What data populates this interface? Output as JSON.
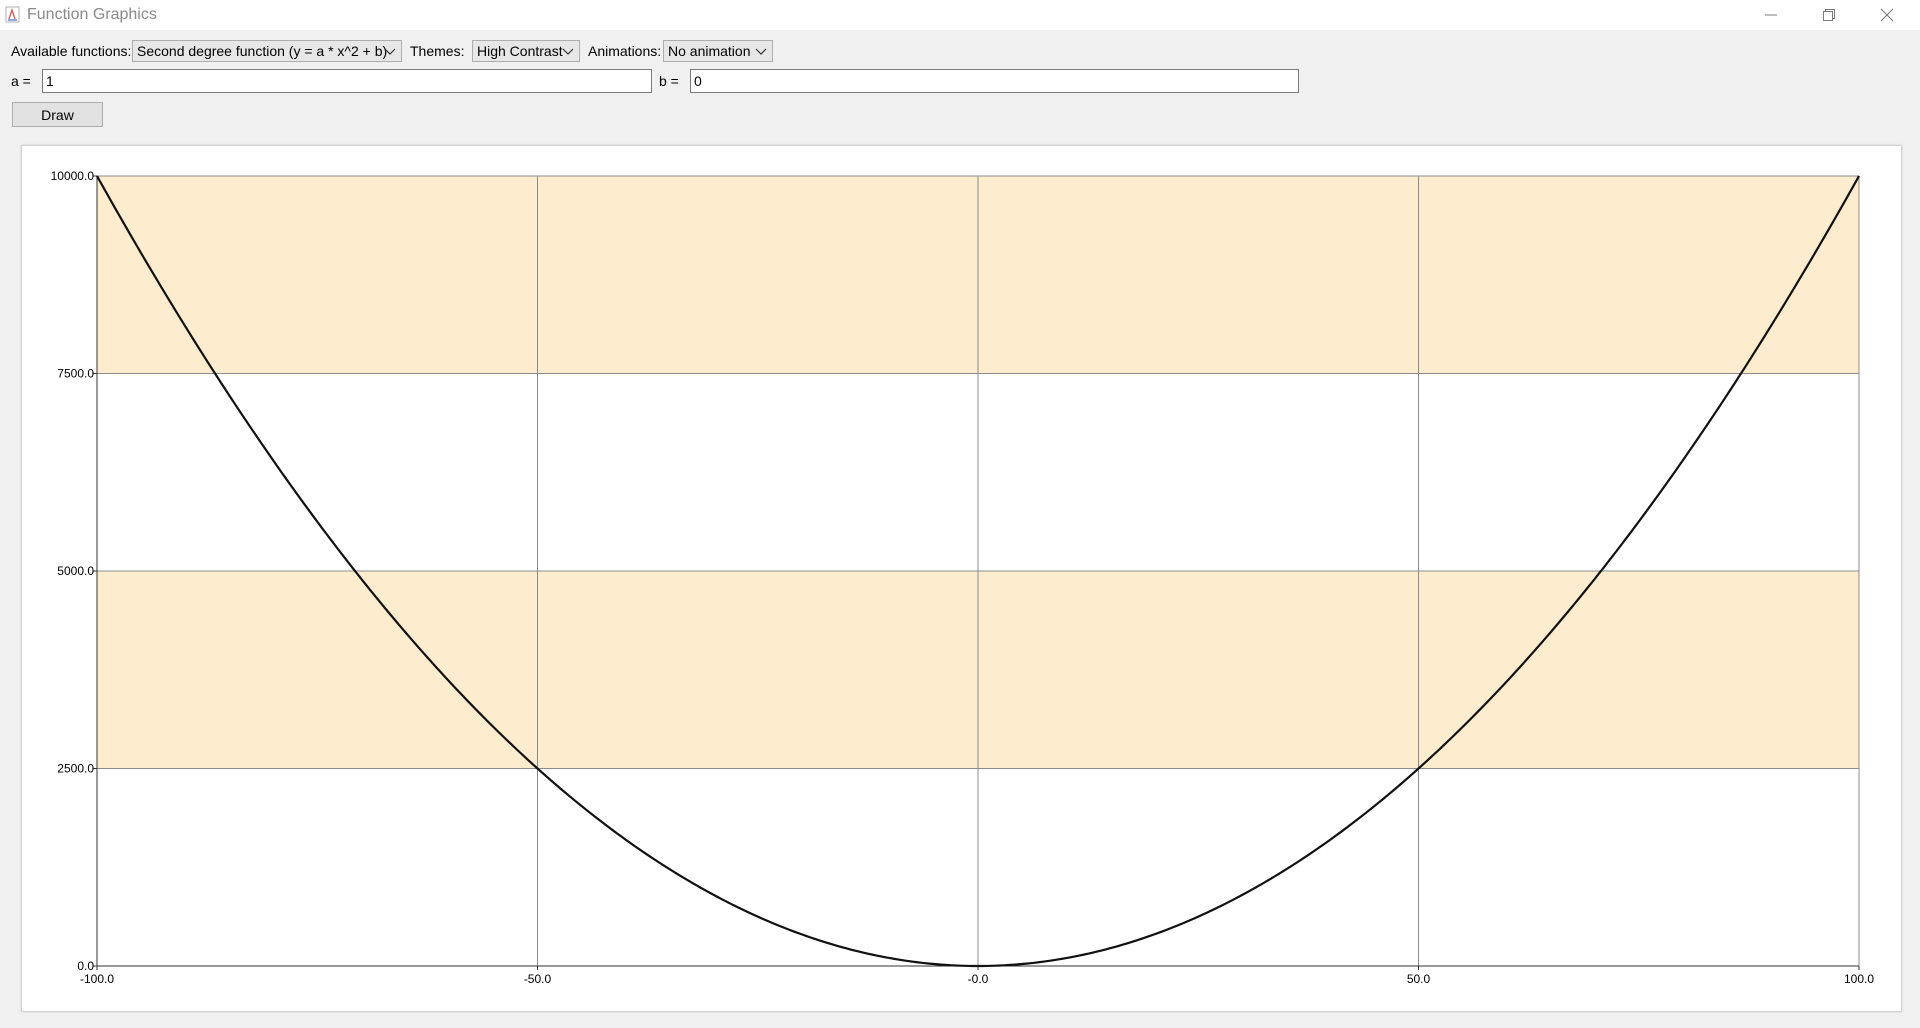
{
  "window": {
    "title": "Function Graphics",
    "icon": "java-app-icon",
    "controls": [
      "minimize-icon",
      "restore-icon",
      "close-icon"
    ]
  },
  "toolbar": {
    "functions_label": "Available functions:",
    "functions_value": "Second degree function (y = a * x^2 + b)",
    "themes_label": "Themes:",
    "themes_value": "High Contrast",
    "animations_label": "Animations:",
    "animations_value": "No animation"
  },
  "params": {
    "a_label": "a =",
    "a_value": "1",
    "b_label": "b =",
    "b_value": "0"
  },
  "draw_label": "Draw",
  "colors": {
    "band": "#fdeccd",
    "curve": "#111111",
    "grid": "#8c8c8c"
  },
  "chart_data": {
    "type": "line",
    "function": "y = a * x^2 + b",
    "a": 1,
    "b": 0,
    "xlim": [
      -100,
      100
    ],
    "ylim": [
      0,
      10000
    ],
    "x_ticks": [
      "-100.0",
      "-50.0",
      "-0.0",
      "50.0",
      "100.0"
    ],
    "x_tick_values": [
      -100,
      -50,
      0,
      50,
      100
    ],
    "y_ticks": [
      "0.0",
      "2500.0",
      "5000.0",
      "7500.0",
      "10000.0"
    ],
    "y_tick_values": [
      0,
      2500,
      5000,
      7500,
      10000
    ],
    "shaded_bands": [
      [
        2500,
        5000
      ],
      [
        7500,
        10000
      ]
    ],
    "grid": true,
    "legend": "none",
    "x_step": 5
  }
}
